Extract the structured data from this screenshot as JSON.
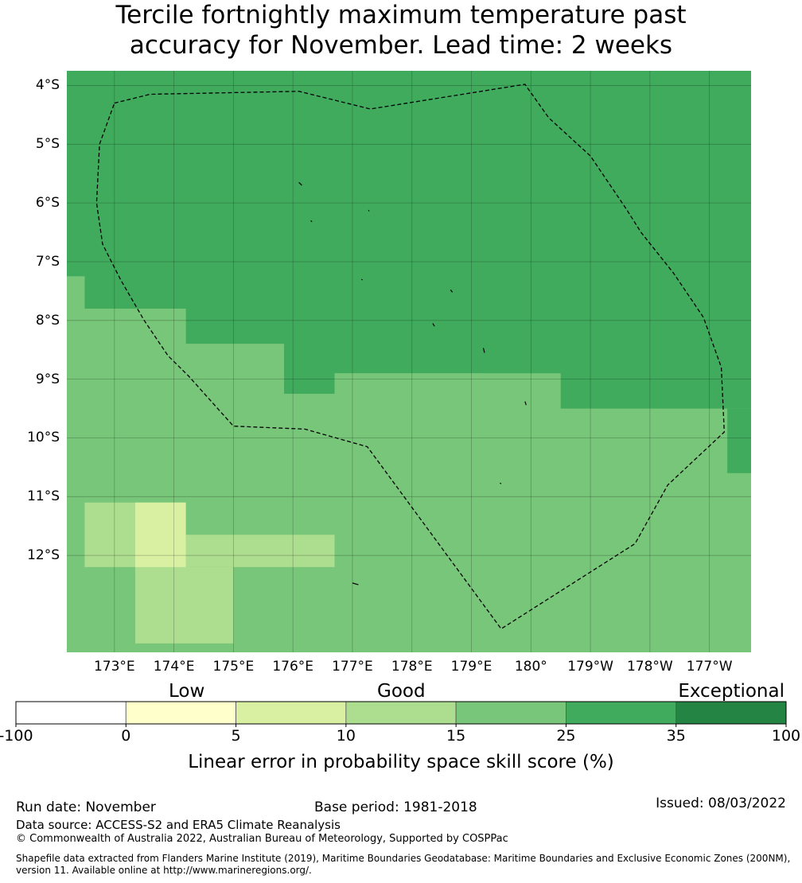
{
  "title": {
    "line1": "Tercile fortnightly maximum temperature past",
    "line2": "accuracy for November. Lead time: 2 weeks"
  },
  "map": {
    "lat_labels": [
      "4°S",
      "5°S",
      "6°S",
      "7°S",
      "8°S",
      "9°S",
      "10°S",
      "11°S",
      "12°S"
    ],
    "lon_labels": [
      "173°E",
      "174°E",
      "175°E",
      "176°E",
      "177°E",
      "178°E",
      "179°E",
      "180°",
      "179°W",
      "178°W",
      "177°W"
    ],
    "lon_range_east": [
      172.2,
      183.7
    ],
    "lat_range": [
      -13.65,
      -3.75
    ],
    "regions": [
      {
        "class": 5,
        "ring": [
          [
            172.2,
            -3.75
          ],
          [
            183.7,
            -3.75
          ],
          [
            183.7,
            -9.5
          ],
          [
            180.5,
            -9.5
          ],
          [
            180.5,
            -8.9
          ],
          [
            176.7,
            -8.9
          ],
          [
            176.7,
            -9.25
          ],
          [
            175.85,
            -9.25
          ],
          [
            175.85,
            -8.4
          ],
          [
            174.2,
            -8.4
          ],
          [
            174.2,
            -7.8
          ],
          [
            172.5,
            -7.8
          ],
          [
            172.5,
            -7.25
          ],
          [
            172.2,
            -7.25
          ]
        ]
      },
      {
        "class": 4,
        "ring": [
          [
            172.2,
            -7.25
          ],
          [
            172.5,
            -7.25
          ],
          [
            172.5,
            -7.8
          ],
          [
            174.2,
            -7.8
          ],
          [
            174.2,
            -8.4
          ],
          [
            175.85,
            -8.4
          ],
          [
            175.85,
            -9.25
          ],
          [
            176.7,
            -9.25
          ],
          [
            176.7,
            -8.9
          ],
          [
            179.15,
            -8.9
          ],
          [
            179.15,
            -9.5
          ],
          [
            178.3,
            -9.5
          ],
          [
            178.3,
            -9.9
          ],
          [
            177.5,
            -9.9
          ],
          [
            177.5,
            -9.5
          ],
          [
            176.7,
            -9.5
          ],
          [
            176.7,
            -10.05
          ],
          [
            175.0,
            -10.05
          ],
          [
            175.0,
            -9.5
          ],
          [
            173.35,
            -9.5
          ],
          [
            173.35,
            -8.9
          ],
          [
            172.2,
            -8.9
          ]
        ]
      },
      {
        "class": 4,
        "ring": [
          [
            180.5,
            -9.9
          ],
          [
            183.3,
            -9.9
          ],
          [
            183.3,
            -10.6
          ],
          [
            181.65,
            -10.6
          ],
          [
            181.65,
            -10.05
          ],
          [
            180.5,
            -10.05
          ]
        ]
      },
      {
        "class": 4,
        "ring": [
          [
            183.3,
            -10.6
          ],
          [
            183.7,
            -10.6
          ],
          [
            183.7,
            -12.2
          ],
          [
            183.3,
            -12.2
          ]
        ]
      },
      {
        "class": 4,
        "ring": [
          [
            180.5,
            -12.7
          ],
          [
            182.5,
            -12.7
          ],
          [
            182.5,
            -13.65
          ],
          [
            180.5,
            -13.65
          ]
        ]
      },
      {
        "class": 4,
        "ring": [
          [
            176.7,
            -13.5
          ],
          [
            177.5,
            -13.5
          ],
          [
            177.5,
            -13.65
          ],
          [
            176.7,
            -13.65
          ]
        ]
      },
      {
        "class": 5,
        "ring": [
          [
            183.3,
            -9.5
          ],
          [
            183.7,
            -9.5
          ],
          [
            183.7,
            -10.6
          ],
          [
            183.3,
            -10.6
          ]
        ]
      },
      {
        "class": 3,
        "ring": [
          [
            172.5,
            -11.1
          ],
          [
            174.2,
            -11.1
          ],
          [
            174.2,
            -12.2
          ],
          [
            172.5,
            -12.2
          ]
        ]
      },
      {
        "class": 3,
        "ring": [
          [
            174.2,
            -11.65
          ],
          [
            176.7,
            -11.65
          ],
          [
            176.7,
            -12.2
          ],
          [
            174.2,
            -12.2
          ]
        ]
      },
      {
        "class": 3,
        "ring": [
          [
            173.35,
            -12.2
          ],
          [
            175.0,
            -12.2
          ],
          [
            175.0,
            -13.5
          ],
          [
            173.35,
            -13.5
          ]
        ]
      },
      {
        "class": 2,
        "ring": [
          [
            173.35,
            -11.1
          ],
          [
            174.2,
            -11.1
          ],
          [
            174.2,
            -12.2
          ],
          [
            173.35,
            -12.2
          ]
        ]
      }
    ],
    "eez_boundary": [
      [
        173.0,
        -4.3
      ],
      [
        173.6,
        -4.15
      ],
      [
        176.1,
        -4.1
      ],
      [
        177.3,
        -4.4
      ],
      [
        179.9,
        -3.98
      ],
      [
        180.3,
        -4.55
      ],
      [
        181.0,
        -5.2
      ],
      [
        181.6,
        -6.1
      ],
      [
        181.85,
        -6.5
      ],
      [
        182.4,
        -7.2
      ],
      [
        182.9,
        -7.95
      ],
      [
        183.2,
        -8.8
      ],
      [
        183.25,
        -9.9
      ],
      [
        182.3,
        -10.8
      ],
      [
        181.75,
        -11.8
      ],
      [
        179.5,
        -13.25
      ],
      [
        177.25,
        -10.15
      ],
      [
        176.2,
        -9.85
      ],
      [
        175.0,
        -9.8
      ],
      [
        174.25,
        -8.95
      ],
      [
        173.9,
        -8.6
      ],
      [
        173.5,
        -8.0
      ],
      [
        173.1,
        -7.3
      ],
      [
        172.8,
        -6.7
      ],
      [
        172.7,
        -6.0
      ],
      [
        172.75,
        -5.0
      ],
      [
        173.0,
        -4.3
      ]
    ],
    "islands": [
      [
        [
          176.1,
          -5.65
        ],
        [
          176.15,
          -5.7
        ]
      ],
      [
        [
          176.3,
          -6.3
        ],
        [
          176.32,
          -6.32
        ]
      ],
      [
        [
          177.27,
          -6.12
        ],
        [
          177.28,
          -6.14
        ]
      ],
      [
        [
          177.15,
          -7.3
        ],
        [
          177.17,
          -7.31
        ]
      ],
      [
        [
          178.65,
          -7.48
        ],
        [
          178.68,
          -7.52
        ]
      ],
      [
        [
          178.35,
          -8.05
        ],
        [
          178.38,
          -8.1
        ]
      ],
      [
        [
          179.2,
          -8.47
        ],
        [
          179.22,
          -8.55
        ]
      ],
      [
        [
          179.9,
          -9.38
        ],
        [
          179.92,
          -9.44
        ]
      ],
      [
        [
          179.48,
          -10.77
        ],
        [
          179.5,
          -10.78
        ]
      ],
      [
        [
          177.0,
          -12.47
        ],
        [
          177.1,
          -12.5
        ]
      ]
    ]
  },
  "colorbar": {
    "category_labels": [
      "Low",
      "Good",
      "Exceptional"
    ],
    "ticks": [
      "-100",
      "0",
      "5",
      "10",
      "15",
      "25",
      "35",
      "100"
    ],
    "colors": [
      "#ffffff",
      "#ffffcc",
      "#d9f0a3",
      "#addd8e",
      "#78c679",
      "#41ab5d",
      "#238443"
    ],
    "label": "Linear error in probability space skill score (%)"
  },
  "footer": {
    "run_date": "Run date: November",
    "base_period": "Base period: 1981-2018",
    "issued": "Issued: 08/03/2022",
    "data_source": "Data source: ACCESS-S2 and ERA5 Climate Reanalysis",
    "copyright": "© Commonwealth of Australia 2022, Australian Bureau of Meteorology, Supported by COSPPac",
    "shapefile_line1": "Shapefile data extracted from Flanders Marine Institute (2019), Maritime Boundaries Geodatabase: Maritime Boundaries and Exclusive Economic Zones (200NM),",
    "shapefile_line2": "version 11. Available online at http://www.marineregions.org/."
  }
}
